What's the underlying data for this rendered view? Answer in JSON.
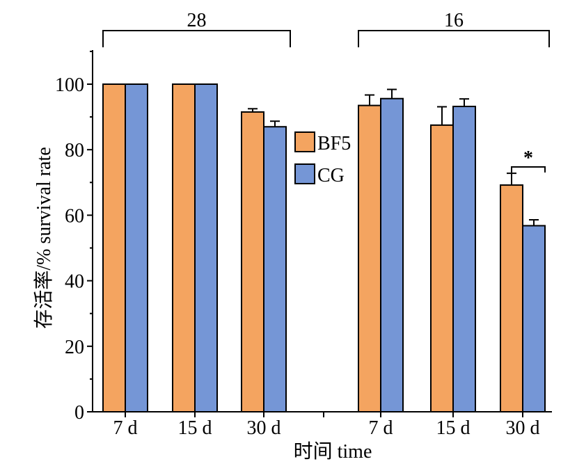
{
  "chart_data": {
    "type": "bar",
    "xlabel": "时间 time",
    "ylabel": "存活率/% survival rate",
    "ylim": [
      0,
      110
    ],
    "yticks": [
      "0",
      "20",
      "40",
      "60",
      "80",
      "100"
    ],
    "ytick_values": [
      0,
      20,
      40,
      60,
      80,
      100
    ],
    "groups": [
      {
        "label": "28",
        "categories": [
          "7 d",
          "15 d",
          "30 d"
        ]
      },
      {
        "label": "16",
        "categories": [
          "7 d",
          "15 d",
          "30 d"
        ]
      }
    ],
    "series": [
      {
        "name": "BF5",
        "color": "#F4A460",
        "values": [
          100,
          100,
          91.5,
          93.5,
          87.5,
          69.2
        ],
        "errors": [
          0,
          0,
          1.0,
          3.2,
          5.6,
          3.6
        ]
      },
      {
        "name": "CG",
        "color": "#7596D6",
        "values": [
          100,
          100,
          87.0,
          95.6,
          93.2,
          56.8
        ],
        "errors": [
          0,
          0,
          1.7,
          2.8,
          2.3,
          1.8
        ]
      }
    ],
    "significance": {
      "category_index": 5,
      "label": "*"
    },
    "legend_position": "center",
    "grid": false
  }
}
